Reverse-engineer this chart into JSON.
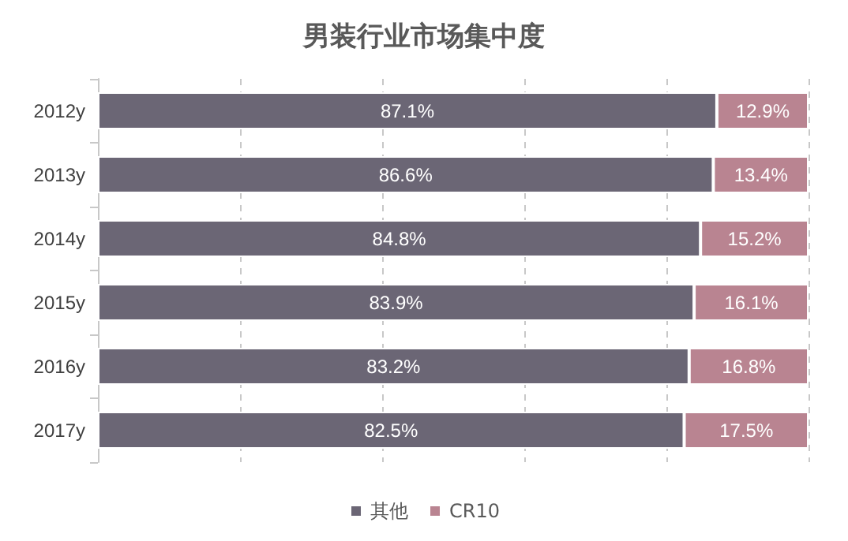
{
  "chart_data": {
    "type": "bar",
    "title": "男装行业市场集中度",
    "orientation": "horizontal",
    "stacked": true,
    "categories": [
      "2012y",
      "2013y",
      "2014y",
      "2015y",
      "2016y",
      "2017y"
    ],
    "series": [
      {
        "name": "其他",
        "color": "#6b6675",
        "values": [
          87.1,
          86.6,
          84.8,
          83.9,
          83.2,
          82.5
        ],
        "value_labels": [
          "87.1%",
          "86.6%",
          "84.8%",
          "83.9%",
          "83.2%",
          "82.5%"
        ]
      },
      {
        "name": "CR10",
        "color": "#b98491",
        "values": [
          12.9,
          13.4,
          15.2,
          16.1,
          16.8,
          17.5
        ],
        "value_labels": [
          "12.9%",
          "13.4%",
          "15.2%",
          "16.1%",
          "16.8%",
          "17.5%"
        ]
      }
    ],
    "xlim": [
      0,
      100
    ],
    "xticks": [
      {
        "value": 0,
        "label": null
      },
      {
        "value": 20,
        "label": null
      },
      {
        "value": 40,
        "label": null
      },
      {
        "value": 60,
        "label": null
      },
      {
        "value": 80,
        "label": null
      },
      {
        "value": 100,
        "label": null
      }
    ],
    "tick_labels": "y",
    "grid": "x",
    "legend": "bottom"
  }
}
